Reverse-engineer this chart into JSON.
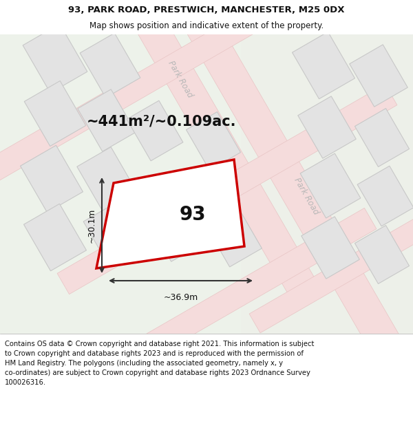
{
  "title_line1": "93, PARK ROAD, PRESTWICH, MANCHESTER, M25 0DX",
  "title_line2": "Map shows position and indicative extent of the property.",
  "footer_text": "Contains OS data © Crown copyright and database right 2021. This information is subject to Crown copyright and database rights 2023 and is reproduced with the permission of HM Land Registry. The polygons (including the associated geometry, namely x, y co-ordinates) are subject to Crown copyright and database rights 2023 Ordnance Survey 100026316.",
  "area_label": "~441m²/~0.109ac.",
  "number_label": "93",
  "width_label": "~36.9m",
  "height_label": "~30.1m",
  "road_label": "Park Road",
  "map_bg": "#edf2ea",
  "road_fill": "#f5dcdc",
  "road_edge": "#e8c4c4",
  "block_fill": "#e3e3e3",
  "block_edge": "#c8c8c8",
  "highlight_fill": "#ffffff",
  "highlight_edge": "#cc0000",
  "road_text_color": "#b8b8b8",
  "dim_color": "#333333",
  "text_color": "#111111",
  "title_fontsize": 9.5,
  "subtitle_fontsize": 8.5,
  "footer_fontsize": 7.2,
  "area_fontsize": 15,
  "number_fontsize": 20,
  "road_label_fontsize": 8.5,
  "dim_fontsize": 9
}
